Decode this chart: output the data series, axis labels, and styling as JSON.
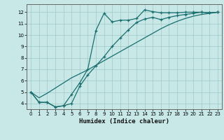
{
  "xlabel": "Humidex (Indice chaleur)",
  "bg_color": "#c8e8e8",
  "grid_color": "#a0c8c8",
  "line_color": "#1a6e6e",
  "xlim": [
    -0.5,
    23.5
  ],
  "ylim": [
    3.5,
    12.7
  ],
  "xticks": [
    0,
    1,
    2,
    3,
    4,
    5,
    6,
    7,
    8,
    9,
    10,
    11,
    12,
    13,
    14,
    15,
    16,
    17,
    18,
    19,
    20,
    21,
    22,
    23
  ],
  "yticks": [
    4,
    5,
    6,
    7,
    8,
    9,
    10,
    11,
    12
  ],
  "line1_x": [
    0,
    1,
    2,
    3,
    4,
    5,
    6,
    7,
    8,
    9,
    10,
    11,
    12,
    13,
    14,
    15,
    16,
    17,
    18,
    19,
    20,
    21,
    22,
    23
  ],
  "line1_y": [
    5.0,
    4.1,
    4.1,
    3.7,
    3.8,
    4.8,
    5.8,
    7.0,
    10.4,
    11.9,
    11.15,
    11.3,
    11.3,
    11.45,
    12.2,
    12.05,
    11.95,
    11.95,
    11.95,
    12.0,
    12.0,
    12.0,
    11.95,
    12.0
  ],
  "line2_x": [
    0,
    1,
    2,
    3,
    4,
    5,
    6,
    7,
    8,
    9,
    10,
    11,
    12,
    13,
    14,
    15,
    16,
    17,
    18,
    19,
    20,
    21,
    22,
    23
  ],
  "line2_y": [
    5.0,
    4.1,
    4.1,
    3.7,
    3.8,
    4.0,
    5.5,
    6.5,
    7.3,
    8.1,
    9.0,
    9.75,
    10.45,
    11.1,
    11.4,
    11.55,
    11.35,
    11.55,
    11.7,
    11.8,
    11.9,
    12.0,
    11.95,
    12.0
  ],
  "line3_x": [
    0,
    1,
    2,
    3,
    4,
    5,
    6,
    7,
    8,
    9,
    10,
    11,
    12,
    13,
    14,
    15,
    16,
    17,
    18,
    19,
    20,
    21,
    22,
    23
  ],
  "line3_y": [
    5.0,
    4.5,
    4.9,
    5.35,
    5.8,
    6.25,
    6.6,
    6.95,
    7.35,
    7.75,
    8.15,
    8.55,
    8.95,
    9.35,
    9.75,
    10.15,
    10.55,
    10.9,
    11.2,
    11.45,
    11.65,
    11.8,
    11.9,
    12.0
  ]
}
